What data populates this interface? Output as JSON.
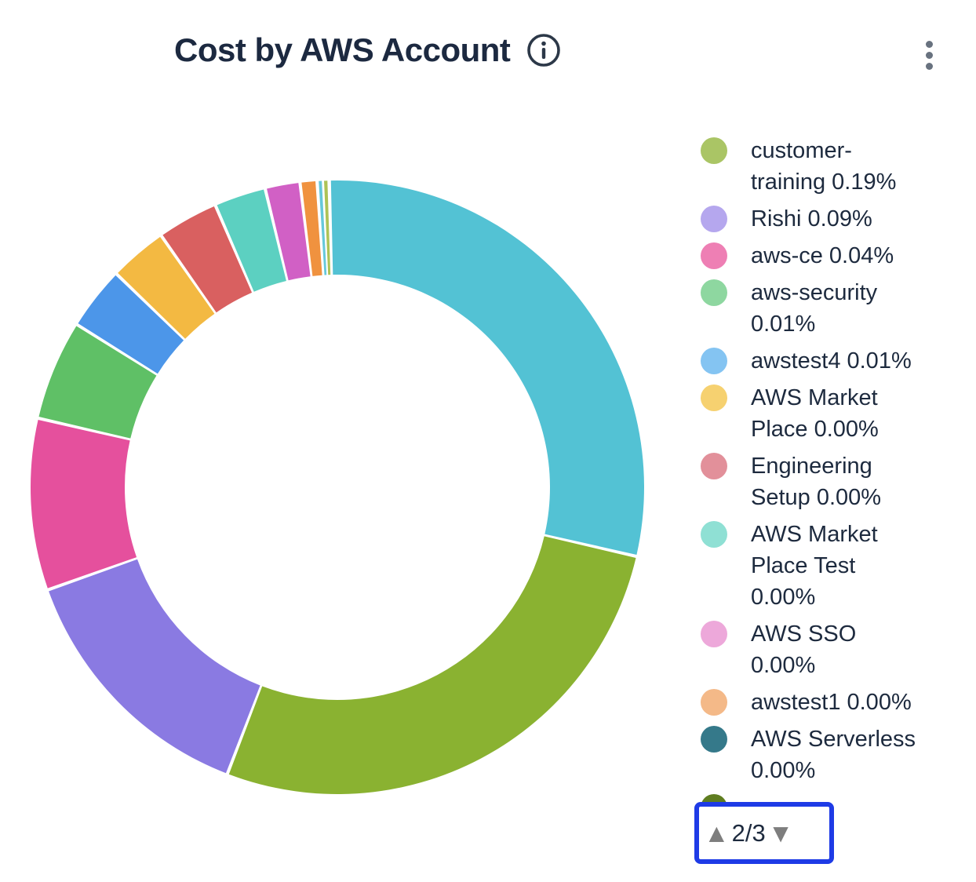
{
  "panel": {
    "title": "Cost by AWS Account"
  },
  "legend_pager": {
    "up_arrow": "▲",
    "down_arrow": "▼",
    "page_label": "2/3"
  },
  "chart_data": {
    "type": "donut",
    "title": "Cost by AWS Account",
    "legend_position": "right",
    "inner_radius_ratio": 0.69,
    "legend_items": [
      {
        "name": "customer-training",
        "percent": "0.19%",
        "color": "#aac565",
        "lines": [
          "customer-",
          "training 0.19%"
        ]
      },
      {
        "name": "Rishi",
        "percent": "0.09%",
        "color": "#b5a7ee",
        "lines": [
          "Rishi 0.09%"
        ]
      },
      {
        "name": "aws-ce",
        "percent": "0.04%",
        "color": "#ee7fb4",
        "lines": [
          "aws-ce 0.04%"
        ]
      },
      {
        "name": "aws-security",
        "percent": "0.01%",
        "color": "#8ed7a0",
        "lines": [
          "aws-security",
          "0.01%"
        ]
      },
      {
        "name": "awstest4",
        "percent": "0.01%",
        "color": "#84c4f2",
        "lines": [
          "awstest4 0.01%"
        ]
      },
      {
        "name": "AWS Market Place",
        "percent": "0.00%",
        "color": "#f6d170",
        "lines": [
          "AWS Market",
          "Place 0.00%"
        ]
      },
      {
        "name": "Engineering Setup",
        "percent": "0.00%",
        "color": "#e2909a",
        "lines": [
          "Engineering",
          "Setup 0.00%"
        ]
      },
      {
        "name": "AWS Market Place Test",
        "percent": "0.00%",
        "color": "#8fe0d4",
        "lines": [
          "AWS Market",
          "Place Test",
          "0.00%"
        ]
      },
      {
        "name": "AWS SSO",
        "percent": "0.00%",
        "color": "#eda8da",
        "lines": [
          "AWS SSO",
          "0.00%"
        ]
      },
      {
        "name": "awstest1",
        "percent": "0.00%",
        "color": "#f4b988",
        "lines": [
          "awstest1 0.00%"
        ]
      },
      {
        "name": "AWS Serverless",
        "percent": "0.00%",
        "color": "#35798a",
        "lines": [
          "AWS Serverless",
          "0.00%"
        ]
      }
    ],
    "partial_item_color": "#5f7d20",
    "slices": [
      {
        "color": "#53c2d4",
        "start_deg": -1.5,
        "end_deg": 103
      },
      {
        "color": "#8ab231",
        "start_deg": 103,
        "end_deg": 201
      },
      {
        "color": "#8a7ae2",
        "start_deg": 201,
        "end_deg": 250.5
      },
      {
        "color": "#e5509d",
        "start_deg": 250.5,
        "end_deg": 283
      },
      {
        "color": "#5fc066",
        "start_deg": 283,
        "end_deg": 302
      },
      {
        "color": "#4c96e9",
        "start_deg": 302,
        "end_deg": 314
      },
      {
        "color": "#f3b942",
        "start_deg": 314,
        "end_deg": 325
      },
      {
        "color": "#d96060",
        "start_deg": 325,
        "end_deg": 336.6
      },
      {
        "color": "#5cd0c1",
        "start_deg": 336.6,
        "end_deg": 346.4
      },
      {
        "color": "#d160c5",
        "start_deg": 346.4,
        "end_deg": 353
      },
      {
        "color": "#f0923f",
        "start_deg": 353,
        "end_deg": 356.2
      },
      {
        "color": "#66c8da",
        "start_deg": 356.35,
        "end_deg": 357.25
      },
      {
        "color": "#aec356",
        "start_deg": 357.35,
        "end_deg": 358.3
      }
    ],
    "pagination": {
      "current_page": 2,
      "total_pages": 3,
      "label": "2/3"
    }
  }
}
